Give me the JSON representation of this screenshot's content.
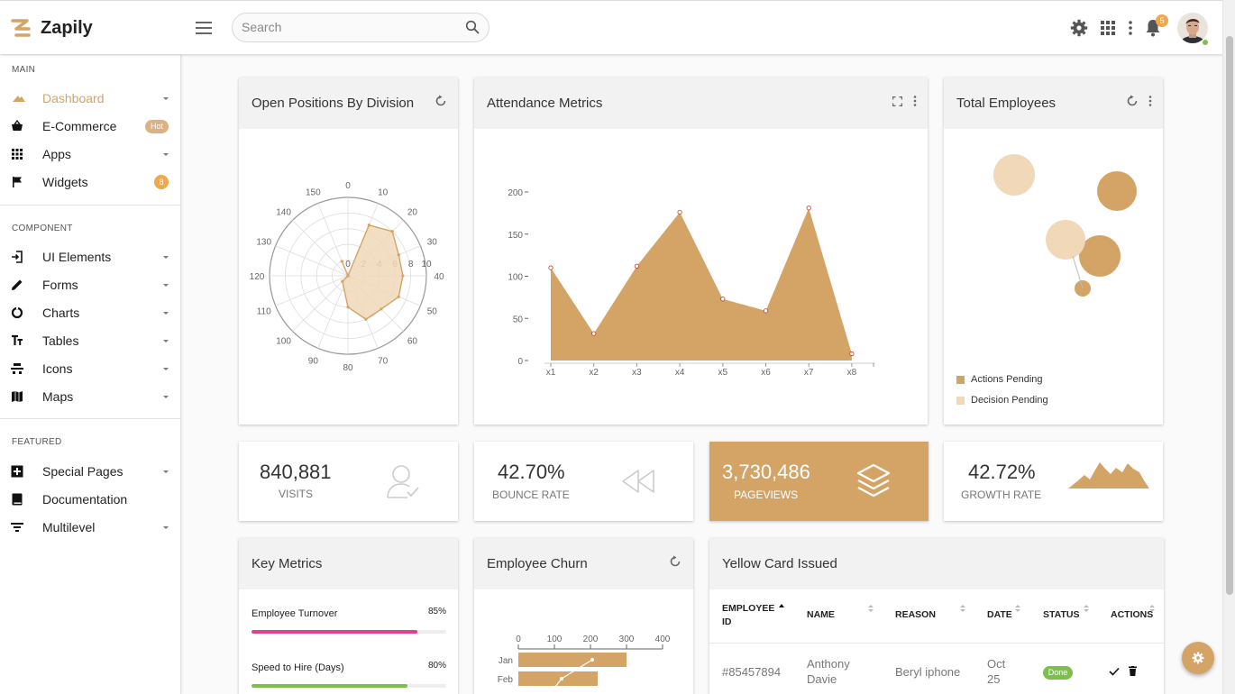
{
  "app": {
    "name": "Zapily"
  },
  "header": {
    "search_placeholder": "Search",
    "notification_count": "5"
  },
  "sidebar": {
    "sections": [
      {
        "title": "MAIN"
      },
      {
        "title": "COMPONENT"
      },
      {
        "title": "FEATURED"
      }
    ],
    "items": [
      {
        "label": "Dashboard",
        "icon": "triangle-icon",
        "active": true
      },
      {
        "label": "E-Commerce",
        "icon": "basket-icon",
        "badge": "Hot"
      },
      {
        "label": "Apps",
        "icon": "grid-icon"
      },
      {
        "label": "Widgets",
        "icon": "flag-icon",
        "badge": "8"
      },
      {
        "label": "UI Elements",
        "icon": "login-icon"
      },
      {
        "label": "Forms",
        "icon": "pencil-icon"
      },
      {
        "label": "Charts",
        "icon": "donut-icon"
      },
      {
        "label": "Tables",
        "icon": "text-format-icon"
      },
      {
        "label": "Icons",
        "icon": "emoji-icon"
      },
      {
        "label": "Maps",
        "icon": "map-icon"
      },
      {
        "label": "Special Pages",
        "icon": "plus-box-icon"
      },
      {
        "label": "Documentation",
        "icon": "book-icon"
      },
      {
        "label": "Multilevel",
        "icon": "filter-list-icon"
      }
    ]
  },
  "cards": {
    "open_positions": {
      "title": "Open Positions By Division"
    },
    "attendance": {
      "title": "Attendance Metrics"
    },
    "total_employees": {
      "title": "Total Employees",
      "legend": [
        "Actions Pending",
        "Decision Pending"
      ]
    },
    "key_metrics": {
      "title": "Key Metrics",
      "metrics": [
        {
          "label": "Employee Turnover",
          "value": "85%",
          "percent": 85,
          "color": "#e23f8d"
        },
        {
          "label": "Speed to Hire (Days)",
          "value": "80%",
          "percent": 80,
          "color": "#7cc04b"
        }
      ]
    },
    "employee_churn": {
      "title": "Employee Churn"
    },
    "yellow_card": {
      "title": "Yellow Card Issued",
      "columns": [
        "EMPLOYEE ID",
        "NAME",
        "REASON",
        "DATE",
        "STATUS",
        "ACTIONS"
      ],
      "rows": [
        {
          "id": "#85457894",
          "name": "Anthony Davie",
          "reason": "Beryl iphone",
          "date": "Oct 25",
          "status": "Done"
        }
      ]
    }
  },
  "stats": [
    {
      "value": "840,881",
      "caption": "VISITS"
    },
    {
      "value": "42.70%",
      "caption": "BOUNCE RATE"
    },
    {
      "value": "3,730,486",
      "caption": "PAGEVIEWS"
    },
    {
      "value": "42.72%",
      "caption": "GROWTH RATE"
    }
  ],
  "colors": {
    "accent": "#d4a467",
    "accent_light": "#f0d8b8",
    "badge_orange": "#f0a84c",
    "success": "#7cc04b",
    "pink": "#e23f8d"
  },
  "chart_data": [
    {
      "type": "radar",
      "angular_ticks": [
        "0",
        "10",
        "20",
        "30",
        "40",
        "50",
        "60",
        "70",
        "80",
        "90",
        "100",
        "110",
        "120",
        "130",
        "140",
        "150"
      ],
      "radial_ticks": [
        "0",
        "2",
        "4",
        "6",
        "8",
        "10"
      ],
      "radial_max": 10,
      "values": [
        {
          "angle": 0,
          "r": 0
        },
        {
          "angle": 10,
          "r": 7
        },
        {
          "angle": 20,
          "r": 8
        },
        {
          "angle": 30,
          "r": 7
        },
        {
          "angle": 40,
          "r": 7
        },
        {
          "angle": 50,
          "r": 7
        },
        {
          "angle": 60,
          "r": 6
        },
        {
          "angle": 70,
          "r": 6
        },
        {
          "angle": 80,
          "r": 4
        },
        {
          "angle": 100,
          "r": 1
        },
        {
          "angle": 120,
          "r": 0
        },
        {
          "angle": 150,
          "r": 2
        }
      ]
    },
    {
      "type": "area",
      "x": [
        "x1",
        "x2",
        "x3",
        "x4",
        "x5",
        "x6",
        "x7",
        "x8"
      ],
      "values": [
        110,
        32,
        112,
        176,
        73,
        59,
        181,
        8
      ],
      "y_ticks": [
        "0",
        "50",
        "100",
        "150",
        "200"
      ],
      "ylim": [
        0,
        200
      ]
    },
    {
      "type": "scatter",
      "series": [
        {
          "name": "Actions Pending",
          "points": [
            [
              8,
              7
            ],
            [
              7,
              3
            ],
            [
              6,
              1
            ]
          ],
          "sizes": [
            22,
            23,
            9
          ]
        },
        {
          "name": "Decision Pending",
          "points": [
            [
              2,
              8
            ],
            [
              5,
              4
            ]
          ],
          "sizes": [
            23,
            22
          ]
        }
      ]
    },
    {
      "type": "bar",
      "orientation": "horizontal",
      "categories": [
        "Jan",
        "Feb"
      ],
      "values": [
        300,
        220
      ],
      "line_values": [
        205,
        120
      ],
      "x_ticks": [
        "0",
        "100",
        "200",
        "300",
        "400"
      ],
      "xlim": [
        0,
        400
      ]
    }
  ]
}
